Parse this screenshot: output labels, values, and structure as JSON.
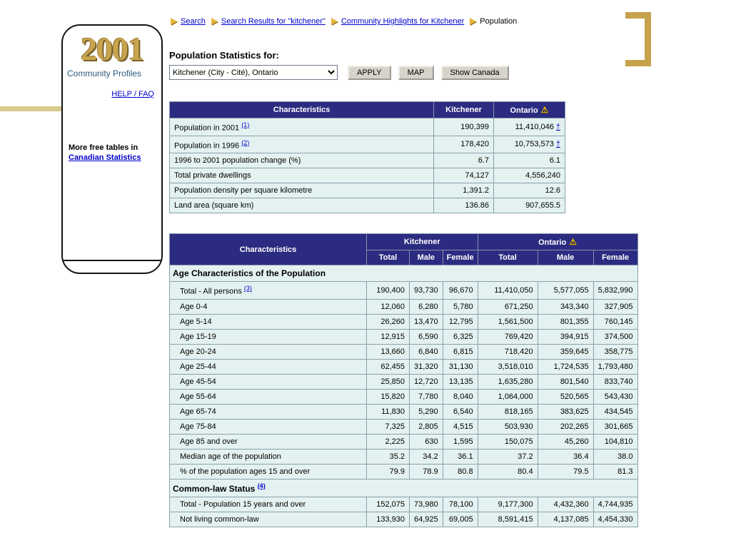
{
  "colors": {
    "header_navy": "#2B2B81",
    "row_cyan": "#E3F2F1",
    "gold_accent": "#C7A24C",
    "link_blue": "#0000CC",
    "logo_gold": "#C9A44F"
  },
  "icons": {
    "warning_icon": "⚠",
    "dagger_icon": "†",
    "breadcrumb_arrow_icon": "▶"
  },
  "sidebar": {
    "logo_text": "2001",
    "logo_label": "Community Profiles",
    "help_link": "HELP / FAQ",
    "more_tables_text": "More free tables in",
    "more_tables_link": "Canadian Statistics"
  },
  "breadcrumb": {
    "items": [
      {
        "label": "Search",
        "link": true
      },
      {
        "label": "Search Results for \"kitchener\"",
        "link": true
      },
      {
        "label": "Community Highlights for Kitchener",
        "link": true
      },
      {
        "label": "Population",
        "link": false
      }
    ]
  },
  "toolbar": {
    "heading": "Population Statistics for:",
    "select_value": "Kitchener (City - Cité), Ontario",
    "apply_label": "APPLY",
    "map_label": "MAP",
    "show_canada_label": "Show Canada"
  },
  "summary_table": {
    "headers": [
      {
        "label": "Characteristics",
        "warning": false
      },
      {
        "label": "Kitchener",
        "warning": false
      },
      {
        "label": "Ontario",
        "warning": true
      }
    ],
    "rows": [
      {
        "label": "Population in 2001",
        "note": "(1)",
        "kitchener": "190,399",
        "ontario": "11,410,046",
        "dagger": true
      },
      {
        "label": "Population in 1996",
        "note": "(2)",
        "kitchener": "178,420",
        "ontario": "10,753,573",
        "dagger": true
      },
      {
        "label": "1996 to 2001 population change (%)",
        "kitchener": "6.7",
        "ontario": "6.1",
        "dagger": false
      },
      {
        "label": "Total private dwellings",
        "kitchener": "74,127",
        "ontario": "4,556,240",
        "dagger": false
      },
      {
        "label": "Population density per square kilometre",
        "kitchener": "1,391.2",
        "ontario": "12.6",
        "dagger": false
      },
      {
        "label": "Land area (square km)",
        "kitchener": "136.86",
        "ontario": "907,655.5",
        "dagger": false
      }
    ]
  },
  "detail_table": {
    "groups": [
      {
        "label": "Characteristics",
        "span": 1,
        "warning": false
      },
      {
        "label": "Kitchener",
        "span": 3,
        "warning": false
      },
      {
        "label": "Ontario",
        "span": 3,
        "warning": true
      }
    ],
    "sub_headers": [
      "Total",
      "Male",
      "Female",
      "Total",
      "Male",
      "Female"
    ],
    "rows": [
      {
        "type": "section",
        "label": "Age Characteristics of the Population"
      },
      {
        "type": "data",
        "label": "Total - All persons",
        "note": "(3)",
        "values": [
          "190,400",
          "93,730",
          "96,670",
          "11,410,050",
          "5,577,055",
          "5,832,990"
        ]
      },
      {
        "type": "data",
        "label": "Age 0-4",
        "values": [
          "12,060",
          "6,280",
          "5,780",
          "671,250",
          "343,340",
          "327,905"
        ]
      },
      {
        "type": "data",
        "label": "Age 5-14",
        "values": [
          "26,260",
          "13,470",
          "12,795",
          "1,561,500",
          "801,355",
          "760,145"
        ]
      },
      {
        "type": "data",
        "label": "Age 15-19",
        "values": [
          "12,915",
          "6,590",
          "6,325",
          "769,420",
          "394,915",
          "374,500"
        ]
      },
      {
        "type": "data",
        "label": "Age 20-24",
        "values": [
          "13,660",
          "6,840",
          "6,815",
          "718,420",
          "359,645",
          "358,775"
        ]
      },
      {
        "type": "data",
        "label": "Age 25-44",
        "values": [
          "62,455",
          "31,320",
          "31,130",
          "3,518,010",
          "1,724,535",
          "1,793,480"
        ]
      },
      {
        "type": "data",
        "label": "Age 45-54",
        "values": [
          "25,850",
          "12,720",
          "13,135",
          "1,635,280",
          "801,540",
          "833,740"
        ]
      },
      {
        "type": "data",
        "label": "Age 55-64",
        "values": [
          "15,820",
          "7,780",
          "8,040",
          "1,064,000",
          "520,565",
          "543,430"
        ]
      },
      {
        "type": "data",
        "label": "Age 65-74",
        "values": [
          "11,830",
          "5,290",
          "6,540",
          "818,165",
          "383,625",
          "434,545"
        ]
      },
      {
        "type": "data",
        "label": "Age 75-84",
        "values": [
          "7,325",
          "2,805",
          "4,515",
          "503,930",
          "202,265",
          "301,665"
        ]
      },
      {
        "type": "data",
        "label": "Age 85 and over",
        "values": [
          "2,225",
          "630",
          "1,595",
          "150,075",
          "45,260",
          "104,810"
        ]
      },
      {
        "type": "data",
        "label": "Median age of the population",
        "values": [
          "35.2",
          "34.2",
          "36.1",
          "37.2",
          "36.4",
          "38.0"
        ]
      },
      {
        "type": "data",
        "label": "% of the population ages 15 and over",
        "values": [
          "79.9",
          "78.9",
          "80.8",
          "80.4",
          "79.5",
          "81.3"
        ]
      },
      {
        "type": "section",
        "label": "Common-law Status",
        "note": "(4)"
      },
      {
        "type": "data",
        "label": "Total - Population 15 years and over",
        "values": [
          "152,075",
          "73,980",
          "78,100",
          "9,177,300",
          "4,432,360",
          "4,744,935"
        ]
      },
      {
        "type": "data",
        "label": "Not living common-law",
        "values": [
          "133,930",
          "64,925",
          "69,005",
          "8,591,415",
          "4,137,085",
          "4,454,330"
        ]
      }
    ]
  }
}
